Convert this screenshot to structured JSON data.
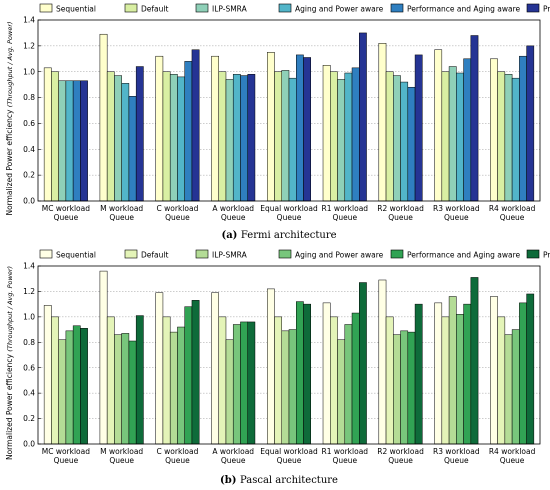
{
  "chart_data": [
    {
      "type": "bar",
      "caption_tag": "(a)",
      "caption_text": "Fermi architecture",
      "ylabel": "Normalized Power efficiency",
      "ylabel_ratio_num": "Throughput",
      "ylabel_ratio_den": "Avg. Power",
      "ylim": [
        0,
        1.4
      ],
      "yticks": [
        "0.0",
        "0.2",
        "0.4",
        "0.6",
        "0.8",
        "1.0",
        "1.2",
        "1.4"
      ],
      "grid": true,
      "legend": "top",
      "categories": [
        [
          "MC workload",
          "Queue"
        ],
        [
          "M workload",
          "Queue"
        ],
        [
          "C workload",
          "Queue"
        ],
        [
          "A workload",
          "Queue"
        ],
        [
          "Equal workload",
          "Queue"
        ],
        [
          "R1 workload",
          "Queue"
        ],
        [
          "R2 workload",
          "Queue"
        ],
        [
          "R3 workload",
          "Queue"
        ],
        [
          "R4 workload",
          "Queue"
        ]
      ],
      "series": [
        {
          "name": "Sequential",
          "color": "#ffffcc",
          "values": [
            1.03,
            1.29,
            1.12,
            1.12,
            1.15,
            1.05,
            1.22,
            1.17,
            1.1
          ]
        },
        {
          "name": "Default",
          "color": "#d9efa3",
          "values": [
            1.0,
            1.0,
            1.0,
            1.0,
            1.0,
            1.0,
            1.0,
            1.0,
            1.0
          ]
        },
        {
          "name": "ILP-SMRA",
          "color": "#8fd0b8",
          "values": [
            0.93,
            0.97,
            0.98,
            0.94,
            1.01,
            0.94,
            0.97,
            1.04,
            0.98
          ]
        },
        {
          "name": "Aging and Power aware",
          "color": "#52b5c9",
          "values": [
            0.93,
            0.91,
            0.96,
            0.98,
            0.95,
            0.99,
            0.92,
            0.99,
            0.95
          ]
        },
        {
          "name": "Performance and Aging aware",
          "color": "#2f7fc0",
          "values": [
            0.93,
            0.81,
            1.08,
            0.97,
            1.13,
            1.03,
            0.88,
            1.1,
            1.12
          ]
        },
        {
          "name": "Proposed",
          "color": "#253494",
          "values": [
            0.93,
            1.04,
            1.17,
            0.98,
            1.11,
            1.3,
            1.13,
            1.28,
            1.2
          ]
        }
      ]
    },
    {
      "type": "bar",
      "caption_tag": "(b)",
      "caption_text": "Pascal architecture",
      "ylabel": "Normalized Power efficiency",
      "ylabel_ratio_num": "Throughput",
      "ylabel_ratio_den": "Avg. Power",
      "ylim": [
        0,
        1.4
      ],
      "yticks": [
        "0.0",
        "0.2",
        "0.4",
        "0.6",
        "0.8",
        "1.0",
        "1.2",
        "1.4"
      ],
      "grid": true,
      "legend": "top",
      "categories": [
        [
          "MC workload",
          "Queue"
        ],
        [
          "M workload",
          "Queue"
        ],
        [
          "C workload",
          "Queue"
        ],
        [
          "A workload",
          "Queue"
        ],
        [
          "Equal workload",
          "Queue"
        ],
        [
          "R1 workload",
          "Queue"
        ],
        [
          "R2 workload",
          "Queue"
        ],
        [
          "R3 workload",
          "Queue"
        ],
        [
          "R4 workload",
          "Queue"
        ]
      ],
      "series": [
        {
          "name": "Sequential",
          "color": "#ffffe5",
          "values": [
            1.09,
            1.36,
            1.19,
            1.19,
            1.22,
            1.11,
            1.29,
            1.11,
            1.16
          ]
        },
        {
          "name": "Default",
          "color": "#e4f4b8",
          "values": [
            1.0,
            1.0,
            1.0,
            1.0,
            1.0,
            1.0,
            1.0,
            1.0,
            1.0
          ]
        },
        {
          "name": "ILP-SMRA",
          "color": "#b4dc96",
          "values": [
            0.82,
            0.86,
            0.88,
            0.82,
            0.89,
            0.82,
            0.86,
            1.16,
            0.86
          ]
        },
        {
          "name": "Aging and Power aware",
          "color": "#78c67c",
          "values": [
            0.89,
            0.87,
            0.92,
            0.94,
            0.9,
            0.94,
            0.89,
            1.02,
            0.9
          ]
        },
        {
          "name": "Performance and Aging aware",
          "color": "#31a354",
          "values": [
            0.93,
            0.81,
            1.08,
            0.96,
            1.12,
            1.03,
            0.88,
            1.1,
            1.11
          ]
        },
        {
          "name": "Proposed",
          "color": "#0e6b3a",
          "values": [
            0.91,
            1.01,
            1.13,
            0.96,
            1.1,
            1.27,
            1.1,
            1.31,
            1.18
          ]
        }
      ]
    }
  ]
}
